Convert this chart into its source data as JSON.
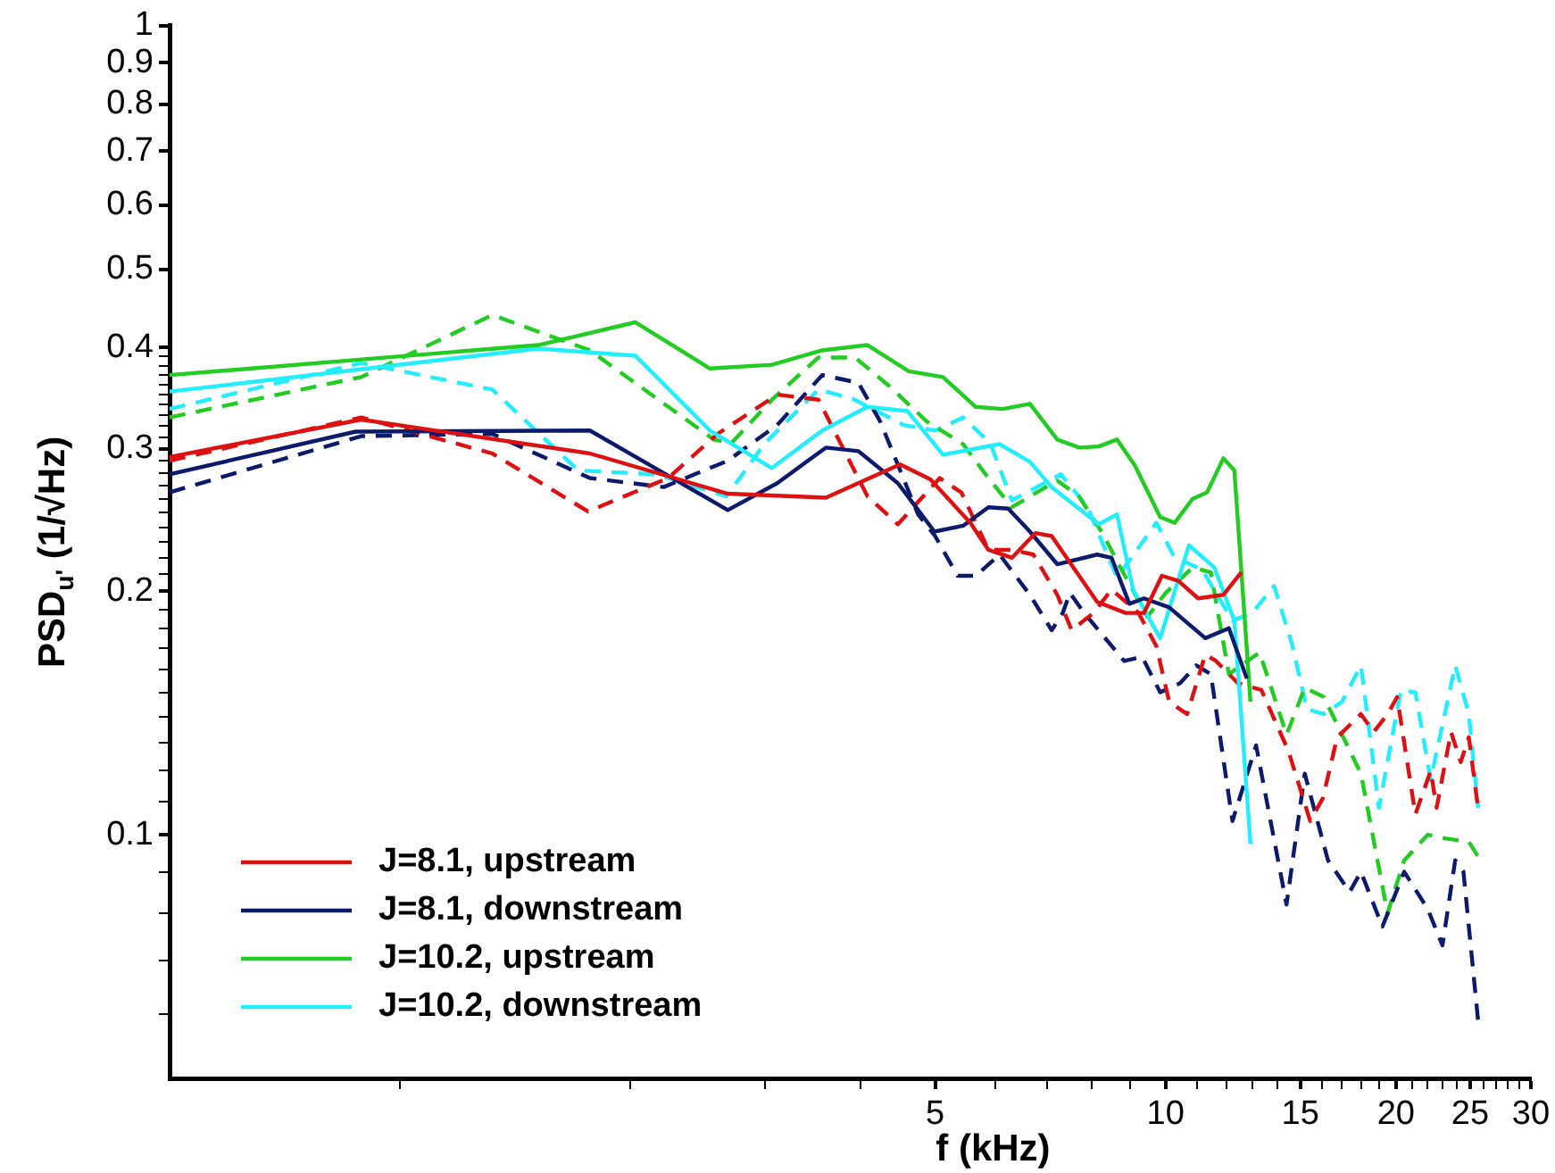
{
  "chart_data": {
    "type": "line",
    "xlabel": "f (kHz)",
    "ylabel": "PSD$_{u'}$ (1/√Hz)",
    "log": "xy",
    "grid": false,
    "legend": "bottom left",
    "marker": "none",
    "xlim": [
      0.5,
      30
    ],
    "ylim": [
      0.05,
      1
    ],
    "xticks": [
      {
        "value": 1,
        "label": null
      },
      {
        "value": 2,
        "label": null
      },
      {
        "value": 3,
        "label": null
      },
      {
        "value": 4,
        "label": null
      },
      5,
      {
        "value": 6,
        "label": null
      },
      {
        "value": 7,
        "label": null
      },
      {
        "value": 8,
        "label": null
      },
      {
        "value": 9,
        "label": null
      },
      10,
      {
        "value": 11,
        "label": null
      },
      {
        "value": 12,
        "label": null
      },
      {
        "value": 13,
        "label": null
      },
      {
        "value": 14,
        "label": null
      },
      15,
      {
        "value": 16,
        "label": null
      },
      {
        "value": 17,
        "label": null
      },
      {
        "value": 18,
        "label": null
      },
      {
        "value": 19,
        "label": null
      },
      20,
      {
        "value": 21,
        "label": null
      },
      {
        "value": 22,
        "label": null
      },
      {
        "value": 23,
        "label": null
      },
      {
        "value": 24,
        "label": null
      },
      25,
      {
        "value": 26,
        "label": null
      },
      {
        "value": 27,
        "label": null
      },
      {
        "value": 28,
        "label": null
      },
      {
        "value": 29,
        "label": null
      },
      30
    ],
    "yticks": [
      {
        "value": 0.06,
        "label": null
      },
      {
        "value": 0.07,
        "label": null
      },
      {
        "value": 0.08,
        "label": null
      },
      {
        "value": 0.09,
        "label": null
      },
      0.1,
      {
        "value": 0.11,
        "label": null
      },
      {
        "value": 0.12,
        "label": null
      },
      {
        "value": 0.13,
        "label": null
      },
      {
        "value": 0.14,
        "label": null
      },
      {
        "value": 0.15,
        "label": null
      },
      {
        "value": 0.16,
        "label": null
      },
      {
        "value": 0.17,
        "label": null
      },
      {
        "value": 0.18,
        "label": null
      },
      {
        "value": 0.19,
        "label": null
      },
      0.2,
      {
        "value": 0.21,
        "label": null
      },
      {
        "value": 0.22,
        "label": null
      },
      {
        "value": 0.23,
        "label": null
      },
      {
        "value": 0.24,
        "label": null
      },
      {
        "value": 0.25,
        "label": null
      },
      {
        "value": 0.26,
        "label": null
      },
      {
        "value": 0.27,
        "label": null
      },
      {
        "value": 0.28,
        "label": null
      },
      {
        "value": 0.29,
        "label": null
      },
      0.3,
      {
        "value": 0.31,
        "label": null
      },
      {
        "value": 0.32,
        "label": null
      },
      {
        "value": 0.33,
        "label": null
      },
      {
        "value": 0.34,
        "label": null
      },
      {
        "value": 0.35,
        "label": null
      },
      {
        "value": 0.36,
        "label": null
      },
      {
        "value": 0.37,
        "label": null
      },
      {
        "value": 0.38,
        "label": null
      },
      {
        "value": 0.39,
        "label": null
      },
      0.4,
      0.5,
      0.6,
      0.7,
      0.8,
      0.9,
      1
    ],
    "series": [
      {
        "name": "J=8.1, upstream",
        "color": "#dd1111",
        "line_style": "solid",
        "x": [
          0.5,
          0.89,
          1.77,
          2.68,
          3.6,
          4.5,
          4.93,
          5.56,
          5.87,
          6.3,
          6.76,
          7.1,
          8.14,
          8.87,
          9.37,
          9.89,
          10.39,
          11.03,
          11.9,
          12.56
        ],
        "values": [
          0.293,
          0.326,
          0.296,
          0.264,
          0.261,
          0.287,
          0.275,
          0.243,
          0.225,
          0.22,
          0.236,
          0.234,
          0.194,
          0.188,
          0.188,
          0.209,
          0.206,
          0.196,
          0.198,
          0.211
        ]
      },
      {
        "name": "J=8.1, downstream",
        "color": "#0b1a6b",
        "line_style": "solid",
        "x": [
          0.5,
          0.875,
          1.77,
          2.68,
          3.11,
          3.6,
          3.97,
          4.47,
          4.99,
          5.44,
          5.87,
          6.23,
          6.65,
          7.22,
          8.14,
          8.5,
          8.97,
          9.37,
          10.11,
          11.27,
          12.1,
          12.77
        ],
        "values": [
          0.279,
          0.315,
          0.316,
          0.252,
          0.272,
          0.301,
          0.298,
          0.272,
          0.237,
          0.241,
          0.254,
          0.253,
          0.237,
          0.216,
          0.222,
          0.22,
          0.193,
          0.196,
          0.191,
          0.175,
          0.18,
          0.156
        ]
      },
      {
        "name": "J=10.2, upstream",
        "color": "#22cc22",
        "line_style": "solid",
        "x": [
          0.5,
          1.516,
          2.03,
          2.54,
          3.06,
          3.56,
          4.08,
          4.62,
          5.12,
          5.65,
          6.13,
          6.65,
          7.22,
          7.71,
          8.18,
          8.64,
          9.12,
          9.84,
          10.28,
          10.84,
          11.33,
          11.9,
          12.3,
          12.91
        ],
        "values": [
          0.37,
          0.403,
          0.43,
          0.377,
          0.381,
          0.397,
          0.403,
          0.374,
          0.368,
          0.338,
          0.336,
          0.341,
          0.308,
          0.301,
          0.302,
          0.308,
          0.286,
          0.247,
          0.243,
          0.26,
          0.265,
          0.292,
          0.282,
          0.146
        ]
      },
      {
        "name": "J=10.2, downstream",
        "color": "#22eeff",
        "line_style": "solid",
        "x": [
          0.5,
          1.516,
          2.03,
          2.54,
          3.06,
          3.56,
          4.08,
          4.6,
          5.12,
          6.07,
          6.65,
          7.1,
          8.18,
          8.64,
          9.07,
          9.84,
          10.73,
          11.58,
          12.3,
          12.91
        ],
        "values": [
          0.353,
          0.399,
          0.391,
          0.316,
          0.284,
          0.316,
          0.338,
          0.334,
          0.295,
          0.304,
          0.289,
          0.269,
          0.242,
          0.249,
          0.201,
          0.175,
          0.228,
          0.214,
          0.184,
          0.0975
        ]
      },
      {
        "color": "#dd1111",
        "line_style": "dashed",
        "x": [
          0.5,
          0.89,
          1.32,
          1.76,
          2.24,
          2.6,
          3.11,
          3.52,
          4.08,
          4.47,
          5.07,
          5.41,
          5.87,
          6.3,
          6.72,
          7.22,
          7.54,
          8.05,
          8.5,
          9.22,
          9.73,
          10.11,
          10.67,
          11.27,
          11.64,
          12.43,
          13.34,
          14.47,
          15.45,
          16.05,
          16.76,
          18.0,
          18.7,
          19.5,
          20.07,
          21.2,
          22.2,
          22.6,
          23.6,
          24.3,
          24.9,
          25.6
        ],
        "values": [
          0.29,
          0.328,
          0.296,
          0.251,
          0.276,
          0.313,
          0.35,
          0.345,
          0.262,
          0.242,
          0.276,
          0.265,
          0.225,
          0.225,
          0.222,
          0.198,
          0.179,
          0.188,
          0.201,
          0.188,
          0.171,
          0.146,
          0.141,
          0.167,
          0.164,
          0.154,
          0.151,
          0.127,
          0.104,
          0.111,
          0.132,
          0.141,
          0.134,
          0.141,
          0.148,
          0.106,
          0.12,
          0.108,
          0.134,
          0.123,
          0.132,
          0.108
        ]
      },
      {
        "color": "#0b1a6b",
        "line_style": "dashed",
        "x": [
          0.5,
          0.89,
          1.32,
          1.77,
          2.21,
          2.68,
          3.11,
          3.56,
          3.97,
          4.24,
          4.75,
          5.0,
          5.35,
          5.65,
          6.07,
          6.65,
          7.1,
          7.34,
          7.5,
          7.83,
          8.83,
          9.32,
          9.84,
          10.45,
          10.97,
          11.46,
          12.23,
          13.13,
          14.39,
          15.2,
          16.3,
          17.4,
          18.0,
          19.2,
          20.5,
          22.0,
          23.0,
          23.9,
          24.5,
          25.6
        ],
        "values": [
          0.265,
          0.311,
          0.313,
          0.276,
          0.269,
          0.29,
          0.321,
          0.37,
          0.362,
          0.324,
          0.249,
          0.234,
          0.209,
          0.209,
          0.222,
          0.198,
          0.179,
          0.188,
          0.199,
          0.188,
          0.164,
          0.166,
          0.15,
          0.154,
          0.162,
          0.158,
          0.104,
          0.129,
          0.082,
          0.119,
          0.093,
          0.085,
          0.09,
          0.077,
          0.09,
          0.081,
          0.073,
          0.093,
          0.09,
          0.059
        ]
      },
      {
        "color": "#22cc22",
        "line_style": "dashed",
        "x": [
          0.5,
          0.89,
          1.32,
          1.77,
          2.57,
          2.71,
          3.07,
          3.52,
          3.93,
          4.35,
          4.88,
          5.44,
          5.87,
          6.3,
          6.65,
          7.22,
          7.71,
          8.27,
          8.73,
          9.47,
          10.0,
          10.85,
          11.46,
          12.1,
          13.27,
          14.39,
          15.2,
          16.1,
          18.0,
          19.5,
          20.5,
          22.0,
          23.2,
          24.9,
          25.6
        ],
        "values": [
          0.328,
          0.368,
          0.439,
          0.397,
          0.308,
          0.305,
          0.346,
          0.389,
          0.389,
          0.359,
          0.324,
          0.304,
          0.276,
          0.254,
          0.262,
          0.274,
          0.262,
          0.236,
          0.214,
          0.186,
          0.199,
          0.214,
          0.211,
          0.158,
          0.168,
          0.133,
          0.152,
          0.148,
          0.119,
          0.08,
          0.093,
          0.1,
          0.099,
          0.098,
          0.094
        ]
      },
      {
        "color": "#22eeff",
        "line_style": "dashed",
        "x": [
          0.5,
          0.89,
          1.32,
          1.71,
          2.16,
          2.67,
          2.99,
          3.52,
          3.9,
          4.55,
          5.0,
          5.44,
          5.9,
          6.3,
          7.3,
          7.91,
          8.64,
          9.73,
          10.28,
          11.15,
          12.23,
          12.98,
          13.86,
          14.63,
          15.3,
          16.1,
          17.0,
          18.0,
          19.0,
          20.3,
          21.2,
          22.2,
          23.9,
          24.9,
          25.6
        ],
        "values": [
          0.336,
          0.383,
          0.355,
          0.282,
          0.279,
          0.262,
          0.304,
          0.355,
          0.346,
          0.321,
          0.316,
          0.328,
          0.305,
          0.259,
          0.279,
          0.254,
          0.208,
          0.243,
          0.22,
          0.213,
          0.184,
          0.188,
          0.203,
          0.172,
          0.143,
          0.141,
          0.146,
          0.162,
          0.108,
          0.151,
          0.15,
          0.117,
          0.162,
          0.141,
          0.108
        ]
      }
    ]
  }
}
